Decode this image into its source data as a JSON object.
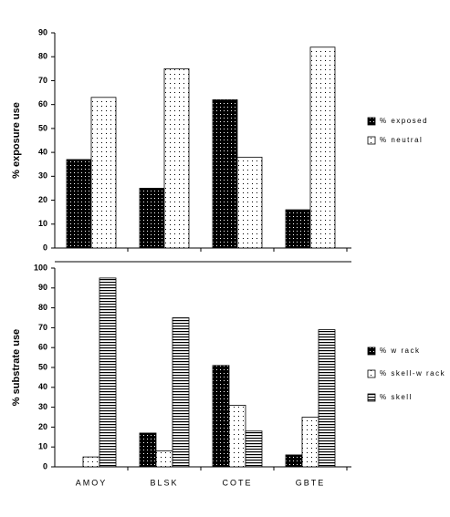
{
  "chart_data": [
    {
      "type": "bar",
      "y_label": "% exposure use",
      "categories": [
        null,
        null,
        null,
        null
      ],
      "series": [
        {
          "name": "% exposed",
          "color": "#000000",
          "values": [
            37,
            25,
            62,
            16
          ]
        },
        {
          "name": "% neutral",
          "color": "#ffffff",
          "values": [
            63,
            75,
            38,
            84
          ]
        }
      ],
      "ylim": [
        0,
        90
      ],
      "yticks": [
        0,
        10,
        20,
        30,
        40,
        50,
        60,
        70,
        80,
        90
      ]
    },
    {
      "type": "bar",
      "y_label": "% substrate use",
      "categories": [
        "AMOY",
        "BLSK",
        "COTE",
        "GBTE"
      ],
      "series": [
        {
          "name": "% w rack",
          "color": "#000000",
          "values": [
            0,
            17,
            51,
            6
          ]
        },
        {
          "name": "% skell-w rack",
          "color": "#ffffff",
          "values": [
            5,
            8,
            31,
            25
          ]
        },
        {
          "name": "% skell",
          "color": "#ffffff",
          "values": [
            95,
            75,
            18,
            69
          ]
        }
      ],
      "ylim": [
        0,
        100
      ],
      "yticks": [
        0,
        10,
        20,
        30,
        40,
        50,
        60,
        70,
        80,
        90,
        100
      ]
    }
  ]
}
